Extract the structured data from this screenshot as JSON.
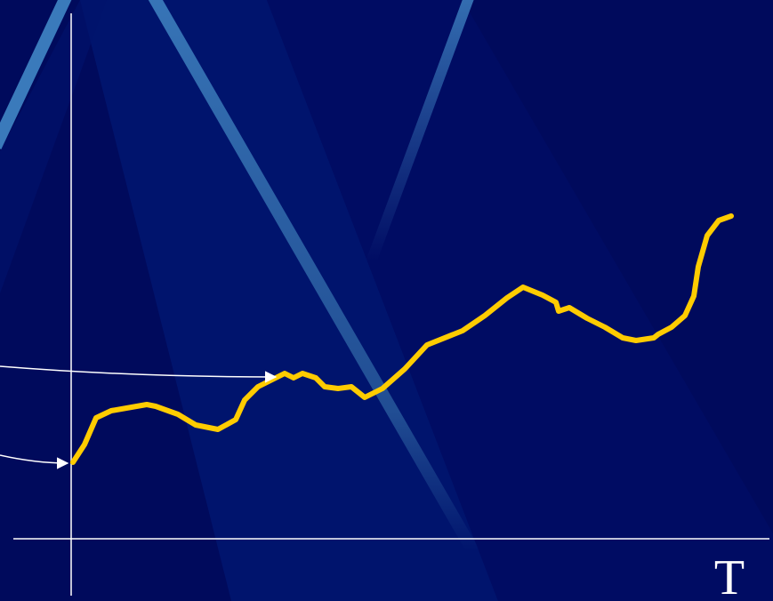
{
  "axis_label": "T"
}
